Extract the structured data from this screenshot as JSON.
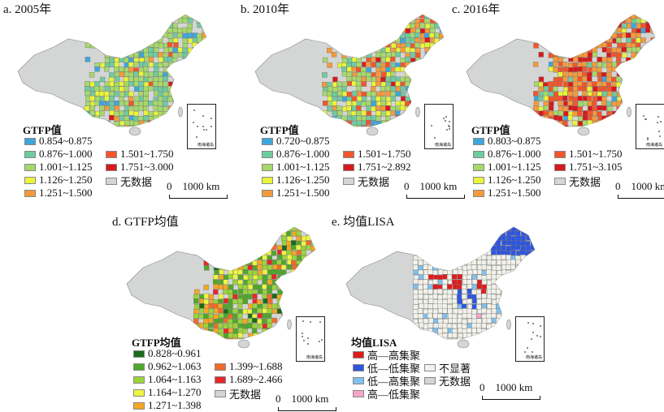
{
  "panels": [
    {
      "title": "a. 2005年",
      "legend_title": "GTFP值",
      "inset_label": "南海诸岛",
      "scale_zero": "0",
      "scale_label": "1000 km",
      "legend": [
        {
          "label": "0.854~0.875",
          "color": "#3ea6dc"
        },
        {
          "label": "0.876~1.000",
          "color": "#6fcba0"
        },
        {
          "label": "1.001~1.125",
          "color": "#a6d96a"
        },
        {
          "label": "1.126~1.250",
          "color": "#e8f53a"
        },
        {
          "label": "1.251~1.500",
          "color": "#f59a3a"
        },
        {
          "label": "1.501~1.750",
          "color": "#f2552b"
        },
        {
          "label": "1.751~3.000",
          "color": "#d7191c"
        },
        {
          "label": "无数据",
          "color": "#d4d6d6"
        }
      ]
    },
    {
      "title": "b. 2010年",
      "legend_title": "GTFP值",
      "inset_label": "南海诸岛",
      "scale_zero": "0",
      "scale_label": "1000 km",
      "legend": [
        {
          "label": "0.720~0.875",
          "color": "#3ea6dc"
        },
        {
          "label": "0.876~1.000",
          "color": "#6fcba0"
        },
        {
          "label": "1.001~1.125",
          "color": "#a6d96a"
        },
        {
          "label": "1.126~1.250",
          "color": "#e8f53a"
        },
        {
          "label": "1.251~1.500",
          "color": "#f59a3a"
        },
        {
          "label": "1.501~1.750",
          "color": "#f2552b"
        },
        {
          "label": "1.751~2.892",
          "color": "#d7191c"
        },
        {
          "label": "无数据",
          "color": "#d4d6d6"
        }
      ]
    },
    {
      "title": "c. 2016年",
      "legend_title": "GTFP值",
      "inset_label": "南海诸岛",
      "scale_zero": "0",
      "scale_label": "1000 km",
      "legend": [
        {
          "label": "0.803~0.875",
          "color": "#3ea6dc"
        },
        {
          "label": "0.876~1.000",
          "color": "#6fcba0"
        },
        {
          "label": "1.001~1.125",
          "color": "#a6d96a"
        },
        {
          "label": "1.126~1.250",
          "color": "#e8f53a"
        },
        {
          "label": "1.251~1.500",
          "color": "#f59a3a"
        },
        {
          "label": "1.501~1.750",
          "color": "#f2552b"
        },
        {
          "label": "1.751~3.105",
          "color": "#d7191c"
        },
        {
          "label": "无数据",
          "color": "#d4d6d6"
        }
      ]
    },
    {
      "title": "d. GTFP均值",
      "legend_title": "GTFP均值",
      "inset_label": "南海诸岛",
      "scale_zero": "0",
      "scale_label": "1000 km",
      "legend": [
        {
          "label": "0.828~0.961",
          "color": "#1a6b1a"
        },
        {
          "label": "0.962~1.063",
          "color": "#4ea82a"
        },
        {
          "label": "1.064~1.163",
          "color": "#9ad43a"
        },
        {
          "label": "1.164~1.270",
          "color": "#eef542"
        },
        {
          "label": "1.271~1.398",
          "color": "#f5a623"
        },
        {
          "label": "1.399~1.688",
          "color": "#f26a2b"
        },
        {
          "label": "1.689~2.466",
          "color": "#e8262a"
        },
        {
          "label": "无数据",
          "color": "#d4d6d6"
        }
      ]
    },
    {
      "title": "e. 均值LISA",
      "legend_title": "均值LISA",
      "inset_label": "南海诸岛",
      "scale_zero": "0",
      "scale_label": "1000 km",
      "legend": [
        {
          "label": "高—高集聚",
          "color": "#e01b1b"
        },
        {
          "label": "低—低集聚",
          "color": "#2d55e0"
        },
        {
          "label": "低—高集聚",
          "color": "#7ec1f0"
        },
        {
          "label": "高—低集聚",
          "color": "#f3a6c8"
        },
        {
          "label": "不显著",
          "color": "#f2f2ea"
        },
        {
          "label": "无数据",
          "color": "#d4d6d6"
        }
      ]
    }
  ]
}
